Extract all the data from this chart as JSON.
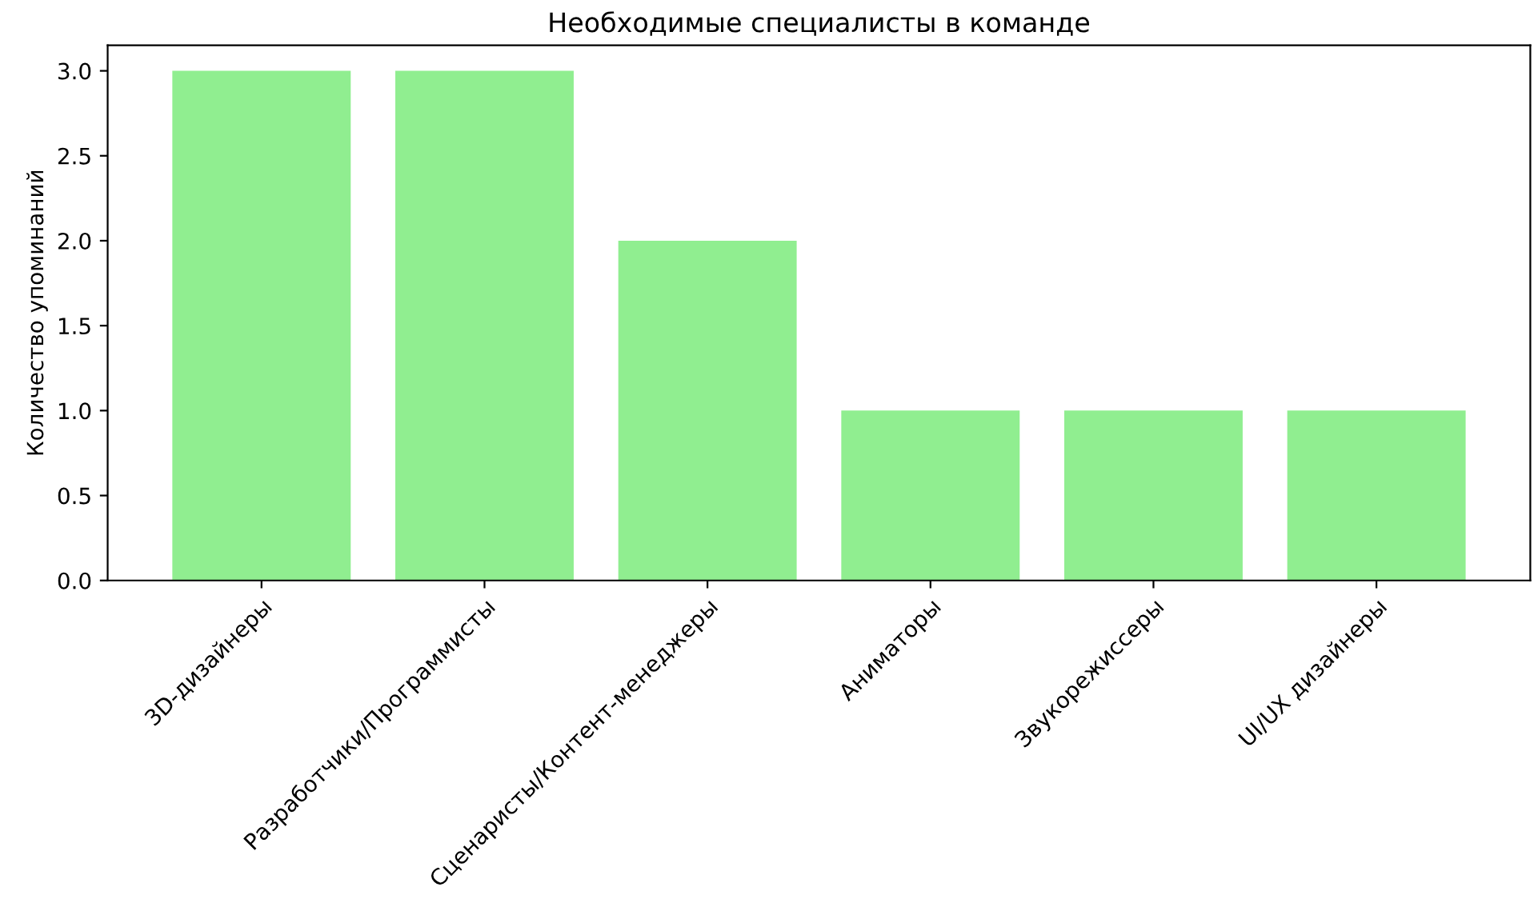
{
  "chart_data": {
    "type": "bar",
    "title": "Необходимые специалисты в команде",
    "ylabel": "Количество упоминаний",
    "categories": [
      "3D-дизайнеры",
      "Разработчики/Программисты",
      "Сценаристы/Контент-менеджеры",
      "Аниматоры",
      "Звукорежиссеры",
      "UI/UX дизайнеры"
    ],
    "values": [
      3,
      3,
      2,
      1,
      1,
      1
    ],
    "color": "#90ee90",
    "ylim": [
      0,
      3.15
    ],
    "yticks": [
      {
        "value": 0,
        "label": "0.0"
      },
      {
        "value": 0.5,
        "label": "0.5"
      },
      {
        "value": 1,
        "label": "1.0"
      },
      {
        "value": 1.5,
        "label": "1.5"
      },
      {
        "value": 2,
        "label": "2.0"
      },
      {
        "value": 2.5,
        "label": "2.5"
      },
      {
        "value": 3,
        "label": "3.0"
      }
    ],
    "grid": false
  }
}
